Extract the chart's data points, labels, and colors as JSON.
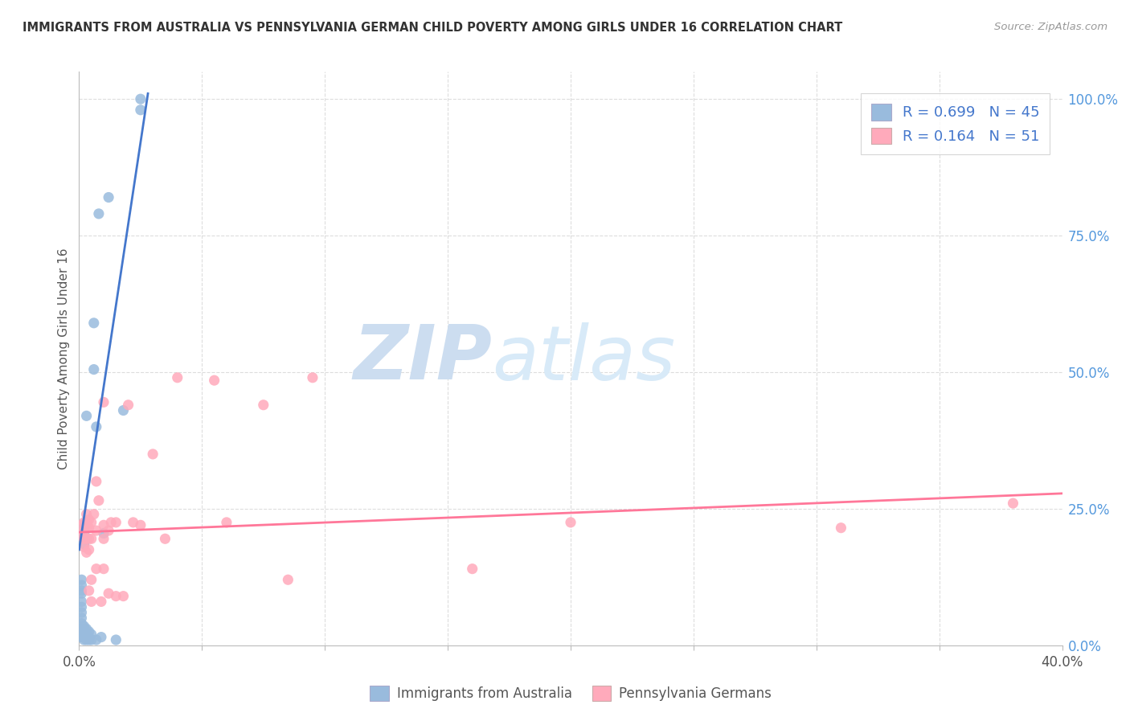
{
  "title": "IMMIGRANTS FROM AUSTRALIA VS PENNSYLVANIA GERMAN CHILD POVERTY AMONG GIRLS UNDER 16 CORRELATION CHART",
  "source": "Source: ZipAtlas.com",
  "ylabel": "Child Poverty Among Girls Under 16",
  "xlim": [
    0.0,
    0.4
  ],
  "ylim": [
    0.0,
    1.05
  ],
  "right_yticks": [
    0.0,
    0.25,
    0.5,
    0.75,
    1.0
  ],
  "right_yticklabels": [
    "0.0%",
    "25.0%",
    "50.0%",
    "75.0%",
    "100.0%"
  ],
  "blue_R": 0.699,
  "blue_N": 45,
  "pink_R": 0.164,
  "pink_N": 51,
  "blue_color": "#99BBDD",
  "pink_color": "#FFAABB",
  "blue_line_color": "#4477CC",
  "pink_line_color": "#FF7799",
  "legend_label_blue": "Immigrants from Australia",
  "legend_label_pink": "Pennsylvania Germans",
  "watermark_zip": "ZIP",
  "watermark_atlas": "atlas",
  "grid_color": "#DDDDDD",
  "blue_points": [
    [
      0.001,
      0.015
    ],
    [
      0.001,
      0.02
    ],
    [
      0.001,
      0.025
    ],
    [
      0.001,
      0.03
    ],
    [
      0.001,
      0.04
    ],
    [
      0.001,
      0.05
    ],
    [
      0.001,
      0.06
    ],
    [
      0.001,
      0.07
    ],
    [
      0.001,
      0.08
    ],
    [
      0.001,
      0.095
    ],
    [
      0.001,
      0.1
    ],
    [
      0.001,
      0.11
    ],
    [
      0.001,
      0.12
    ],
    [
      0.002,
      0.01
    ],
    [
      0.002,
      0.015
    ],
    [
      0.002,
      0.02
    ],
    [
      0.002,
      0.025
    ],
    [
      0.002,
      0.03
    ],
    [
      0.002,
      0.035
    ],
    [
      0.002,
      0.185
    ],
    [
      0.002,
      0.195
    ],
    [
      0.002,
      0.205
    ],
    [
      0.002,
      0.215
    ],
    [
      0.003,
      0.01
    ],
    [
      0.003,
      0.02
    ],
    [
      0.003,
      0.03
    ],
    [
      0.003,
      0.195
    ],
    [
      0.003,
      0.42
    ],
    [
      0.004,
      0.01
    ],
    [
      0.004,
      0.015
    ],
    [
      0.004,
      0.025
    ],
    [
      0.005,
      0.01
    ],
    [
      0.005,
      0.02
    ],
    [
      0.006,
      0.505
    ],
    [
      0.006,
      0.59
    ],
    [
      0.007,
      0.01
    ],
    [
      0.007,
      0.4
    ],
    [
      0.008,
      0.79
    ],
    [
      0.009,
      0.015
    ],
    [
      0.01,
      0.205
    ],
    [
      0.012,
      0.82
    ],
    [
      0.015,
      0.01
    ],
    [
      0.018,
      0.43
    ],
    [
      0.025,
      0.98
    ],
    [
      0.025,
      1.0
    ]
  ],
  "pink_points": [
    [
      0.001,
      0.2
    ],
    [
      0.001,
      0.22
    ],
    [
      0.002,
      0.18
    ],
    [
      0.002,
      0.195
    ],
    [
      0.002,
      0.21
    ],
    [
      0.002,
      0.225
    ],
    [
      0.003,
      0.17
    ],
    [
      0.003,
      0.195
    ],
    [
      0.003,
      0.215
    ],
    [
      0.003,
      0.225
    ],
    [
      0.003,
      0.24
    ],
    [
      0.004,
      0.1
    ],
    [
      0.004,
      0.175
    ],
    [
      0.004,
      0.195
    ],
    [
      0.004,
      0.215
    ],
    [
      0.004,
      0.23
    ],
    [
      0.005,
      0.08
    ],
    [
      0.005,
      0.12
    ],
    [
      0.005,
      0.195
    ],
    [
      0.005,
      0.225
    ],
    [
      0.006,
      0.24
    ],
    [
      0.007,
      0.14
    ],
    [
      0.007,
      0.21
    ],
    [
      0.007,
      0.3
    ],
    [
      0.008,
      0.265
    ],
    [
      0.009,
      0.08
    ],
    [
      0.01,
      0.14
    ],
    [
      0.01,
      0.195
    ],
    [
      0.01,
      0.22
    ],
    [
      0.01,
      0.445
    ],
    [
      0.012,
      0.095
    ],
    [
      0.012,
      0.21
    ],
    [
      0.013,
      0.225
    ],
    [
      0.015,
      0.09
    ],
    [
      0.015,
      0.225
    ],
    [
      0.018,
      0.09
    ],
    [
      0.02,
      0.44
    ],
    [
      0.022,
      0.225
    ],
    [
      0.025,
      0.22
    ],
    [
      0.03,
      0.35
    ],
    [
      0.035,
      0.195
    ],
    [
      0.04,
      0.49
    ],
    [
      0.055,
      0.485
    ],
    [
      0.06,
      0.225
    ],
    [
      0.075,
      0.44
    ],
    [
      0.085,
      0.12
    ],
    [
      0.095,
      0.49
    ],
    [
      0.16,
      0.14
    ],
    [
      0.2,
      0.225
    ],
    [
      0.31,
      0.215
    ],
    [
      0.38,
      0.26
    ]
  ],
  "blue_line": [
    [
      0.0,
      0.175
    ],
    [
      0.028,
      1.01
    ]
  ],
  "pink_line": [
    [
      0.0,
      0.207
    ],
    [
      0.4,
      0.278
    ]
  ]
}
